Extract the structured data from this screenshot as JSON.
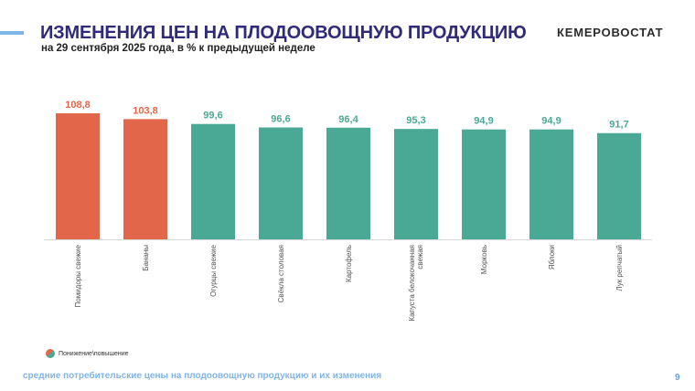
{
  "header": {
    "title": "ИЗМЕНЕНИЯ ЦЕН НА ПЛОДООВОЩНУЮ ПРОДУКЦИЮ",
    "subtitle": "на 29 сентября 2025 года, в % к предыдущей неделе",
    "brand": "КЕМЕРОВОСТАТ"
  },
  "legend": {
    "label": "Понижение\\повышение"
  },
  "footer": {
    "text": "средние потребительские цены на плодоовощную продукцию и их изменения",
    "page_number": "9"
  },
  "colors": {
    "increase": "#e2664a",
    "decrease": "#4aa995",
    "title": "#2f2a7a",
    "footer": "#82b4e6"
  },
  "chart_data": {
    "type": "bar",
    "title": "ИЗМЕНЕНИЯ ЦЕН НА ПЛОДООВОЩНУЮ ПРОДУКЦИЮ",
    "subtitle": "на 29 сентября 2025 года, в % к предыдущей неделе",
    "xlabel": "",
    "ylabel": "",
    "ylim": [
      0,
      110
    ],
    "grid": false,
    "legend_position": "bottom-left",
    "categories": [
      "Помидоры свежие",
      "Бананы",
      "Огурцы свежие",
      "Свёкла столовая",
      "Картофель",
      "Капуста белокочанная свежая",
      "Морковь",
      "Яблоки",
      "Лук репчатый"
    ],
    "values": [
      108.8,
      103.8,
      99.6,
      96.6,
      96.4,
      95.3,
      94.9,
      94.9,
      91.7
    ],
    "value_labels": [
      "108,8",
      "103,8",
      "99,6",
      "96,6",
      "96,4",
      "95,3",
      "94,9",
      "94,9",
      "91,7"
    ],
    "series_status": [
      "increase",
      "increase",
      "decrease",
      "decrease",
      "decrease",
      "decrease",
      "decrease",
      "decrease",
      "decrease"
    ]
  }
}
